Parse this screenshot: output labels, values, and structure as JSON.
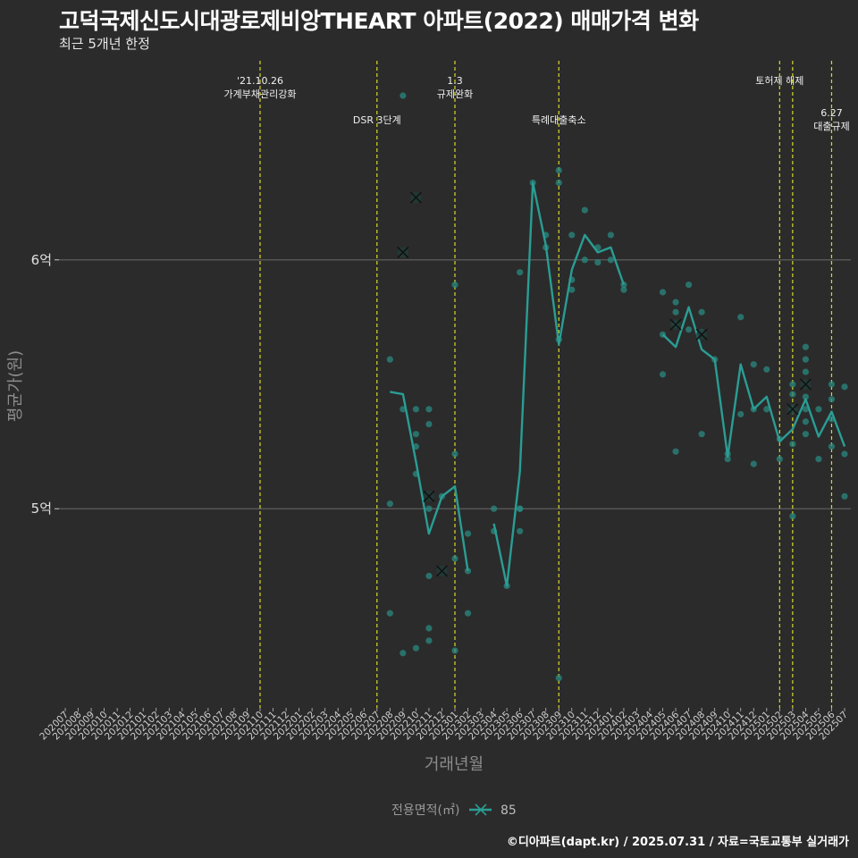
{
  "header": {
    "title": "고덕국제신도시대광로제비앙THEART 아파트(2022) 매매가격 변화",
    "subtitle": "최근 5개년 한정"
  },
  "caption": "©디아파트(dapt.kr) / 2025.07.31 / 자료=국토교통부 실거래가",
  "colors": {
    "background": "#2b2b2b",
    "series": "#2a9d94",
    "points": "#2a8a80",
    "event_line": "#d8d82a",
    "grid": "#5e5e5e"
  },
  "chart_data": {
    "type": "line",
    "title": "고덕국제신도시대광로제비앙THEART 아파트(2022) 매매가격 변화",
    "xlabel": "거래년월",
    "ylabel": "평균가(원)",
    "ylim": [
      420000000,
      680000000
    ],
    "y_ticks": [
      {
        "value": 500000000,
        "label": "5억"
      },
      {
        "value": 600000000,
        "label": "6억"
      }
    ],
    "categories": [
      "202007",
      "202008",
      "202009",
      "202010",
      "202011",
      "202012",
      "202101",
      "202102",
      "202103",
      "202104",
      "202105",
      "202106",
      "202107",
      "202108",
      "202109",
      "202110",
      "202111",
      "202112",
      "202201",
      "202202",
      "202203",
      "202204",
      "202205",
      "202206",
      "202207",
      "202208",
      "202209",
      "202210",
      "202211",
      "202212",
      "202301",
      "202302",
      "202303",
      "202304",
      "202305",
      "202306",
      "202307",
      "202308",
      "202309",
      "202310",
      "202311",
      "202312",
      "202401",
      "202402",
      "202403",
      "202404",
      "202405",
      "202406",
      "202407",
      "202408",
      "202409",
      "202410",
      "202411",
      "202412",
      "202501",
      "202502",
      "202503",
      "202504",
      "202505",
      "202506",
      "202507"
    ],
    "legend": {
      "title": "전용면적(㎡)",
      "entries": [
        "85"
      ]
    },
    "events": [
      {
        "month": "202110",
        "lines": [
          "'21.10.26",
          "가계부채관리강화"
        ],
        "row": 1
      },
      {
        "month": "202207",
        "lines": [
          "DSR 3단계"
        ],
        "row": 2
      },
      {
        "month": "202301",
        "lines": [
          "1.3",
          "규제완화"
        ],
        "row": 1
      },
      {
        "month": "202309",
        "lines": [
          "특례대출축소"
        ],
        "row": 2
      },
      {
        "month": "202502",
        "lines": [
          "토허제 해제"
        ],
        "row": 1
      },
      {
        "month": "202503",
        "lines": [],
        "row": 1
      },
      {
        "month": "202506",
        "lines": [
          "6.27",
          "대출규제"
        ],
        "row": 3
      }
    ],
    "series": [
      {
        "name": "85",
        "segments": [
          [
            [
              "202208",
              547000000
            ],
            [
              "202209",
              546000000
            ],
            [
              "202210",
              519000000
            ],
            [
              "202211",
              490000000
            ],
            [
              "202212",
              505000000
            ],
            [
              "202301",
              509000000
            ],
            [
              "202302",
              475000000
            ]
          ],
          [
            [
              "202304",
              494000000
            ],
            [
              "202305",
              469000000
            ],
            [
              "202306",
              515000000
            ],
            [
              "202307",
              631000000
            ],
            [
              "202308",
              606000000
            ],
            [
              "202309",
              566000000
            ],
            [
              "202310",
              596000000
            ],
            [
              "202311",
              610000000
            ],
            [
              "202312",
              603000000
            ],
            [
              "202401",
              605000000
            ],
            [
              "202402",
              590000000
            ]
          ],
          [
            [
              "202405",
              570000000
            ],
            [
              "202406",
              565000000
            ],
            [
              "202407",
              581000000
            ],
            [
              "202408",
              564000000
            ],
            [
              "202409",
              560000000
            ],
            [
              "202410",
              521000000
            ],
            [
              "202411",
              558000000
            ],
            [
              "202412",
              540000000
            ],
            [
              "202501",
              545000000
            ],
            [
              "202502",
              527000000
            ],
            [
              "202503",
              532000000
            ],
            [
              "202504",
              544000000
            ],
            [
              "202505",
              529000000
            ],
            [
              "202506",
              539000000
            ],
            [
              "202507",
              525000000
            ]
          ]
        ]
      }
    ],
    "transactions": [
      [
        "202208",
        560000000
      ],
      [
        "202208",
        502000000
      ],
      [
        "202208",
        458000000
      ],
      [
        "202209",
        666000000
      ],
      [
        "202209",
        540000000
      ],
      [
        "202209",
        442000000
      ],
      [
        "202210",
        540000000
      ],
      [
        "202210",
        530000000
      ],
      [
        "202210",
        525000000
      ],
      [
        "202210",
        514000000
      ],
      [
        "202210",
        444000000
      ],
      [
        "202211",
        540000000
      ],
      [
        "202211",
        534000000
      ],
      [
        "202211",
        500000000
      ],
      [
        "202211",
        473000000
      ],
      [
        "202211",
        452000000
      ],
      [
        "202211",
        447000000
      ],
      [
        "202212",
        505000000
      ],
      [
        "202301",
        590000000
      ],
      [
        "202301",
        522000000
      ],
      [
        "202301",
        480000000
      ],
      [
        "202301",
        443000000
      ],
      [
        "202302",
        490000000
      ],
      [
        "202302",
        475000000
      ],
      [
        "202302",
        458000000
      ],
      [
        "202304",
        500000000
      ],
      [
        "202304",
        491000000
      ],
      [
        "202305",
        469000000
      ],
      [
        "202306",
        500000000
      ],
      [
        "202306",
        500000000
      ],
      [
        "202306",
        491000000
      ],
      [
        "202306",
        595000000
      ],
      [
        "202307",
        631000000
      ],
      [
        "202308",
        610000000
      ],
      [
        "202308",
        605000000
      ],
      [
        "202309",
        636000000
      ],
      [
        "202309",
        631000000
      ],
      [
        "202309",
        432000000
      ],
      [
        "202309",
        568000000
      ],
      [
        "202310",
        610000000
      ],
      [
        "202310",
        592000000
      ],
      [
        "202310",
        588000000
      ],
      [
        "202311",
        620000000
      ],
      [
        "202311",
        600000000
      ],
      [
        "202312",
        605000000
      ],
      [
        "202312",
        599000000
      ],
      [
        "202401",
        610000000
      ],
      [
        "202401",
        600000000
      ],
      [
        "202402",
        590000000
      ],
      [
        "202402",
        588000000
      ],
      [
        "202405",
        587000000
      ],
      [
        "202405",
        570000000
      ],
      [
        "202405",
        554000000
      ],
      [
        "202406",
        583000000
      ],
      [
        "202406",
        579000000
      ],
      [
        "202406",
        574000000
      ],
      [
        "202406",
        523000000
      ],
      [
        "202407",
        590000000
      ],
      [
        "202407",
        572000000
      ],
      [
        "202408",
        579000000
      ],
      [
        "202408",
        571000000
      ],
      [
        "202408",
        530000000
      ],
      [
        "202409",
        560000000
      ],
      [
        "202410",
        522000000
      ],
      [
        "202410",
        520000000
      ],
      [
        "202411",
        577000000
      ],
      [
        "202411",
        538000000
      ],
      [
        "202412",
        558000000
      ],
      [
        "202412",
        540000000
      ],
      [
        "202412",
        518000000
      ],
      [
        "202501",
        556000000
      ],
      [
        "202501",
        540000000
      ],
      [
        "202502",
        528000000
      ],
      [
        "202502",
        520000000
      ],
      [
        "202503",
        550000000
      ],
      [
        "202503",
        546000000
      ],
      [
        "202503",
        540000000
      ],
      [
        "202503",
        526000000
      ],
      [
        "202503",
        497000000
      ],
      [
        "202504",
        565000000
      ],
      [
        "202504",
        560000000
      ],
      [
        "202504",
        555000000
      ],
      [
        "202504",
        545000000
      ],
      [
        "202504",
        540000000
      ],
      [
        "202504",
        535000000
      ],
      [
        "202504",
        530000000
      ],
      [
        "202505",
        540000000
      ],
      [
        "202505",
        520000000
      ],
      [
        "202506",
        550000000
      ],
      [
        "202506",
        544000000
      ],
      [
        "202506",
        536000000
      ],
      [
        "202506",
        525000000
      ],
      [
        "202507",
        549000000
      ],
      [
        "202507",
        522000000
      ],
      [
        "202507",
        505000000
      ]
    ],
    "cross_markers": [
      [
        "202209",
        603000000
      ],
      [
        "202210",
        625000000
      ],
      [
        "202211",
        505000000
      ],
      [
        "202212",
        475000000
      ],
      [
        "202406",
        574000000
      ],
      [
        "202408",
        570000000
      ],
      [
        "202503",
        540000000
      ],
      [
        "202504",
        550000000
      ]
    ]
  }
}
